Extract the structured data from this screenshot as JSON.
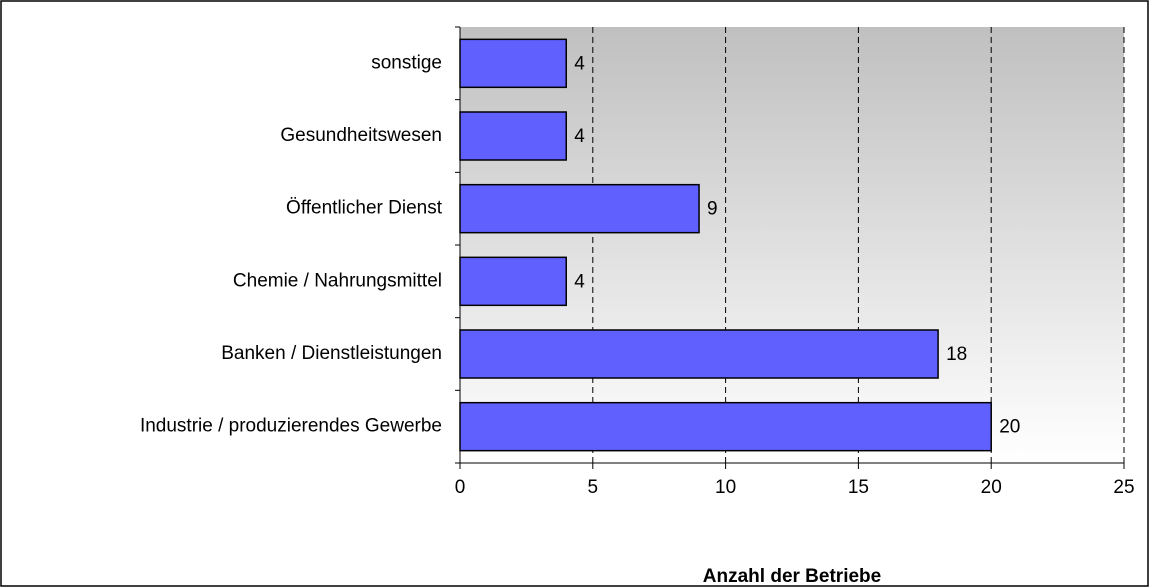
{
  "chart_data": {
    "type": "bar",
    "orientation": "horizontal",
    "x_axis_label": "Anzahl der Betriebe",
    "categories": [
      "sonstige",
      "Gesundheitswesen",
      "Öffentlicher Dienst",
      "Chemie / Nahrungsmittel",
      "Banken / Dienstleistungen",
      "Industrie / produzierendes Gewerbe"
    ],
    "values": [
      4,
      4,
      9,
      4,
      18,
      20
    ],
    "color": "#6060ff",
    "xlim": [
      0,
      25
    ],
    "xticks": [
      0,
      5,
      10,
      15,
      20,
      25
    ],
    "grid": true
  }
}
